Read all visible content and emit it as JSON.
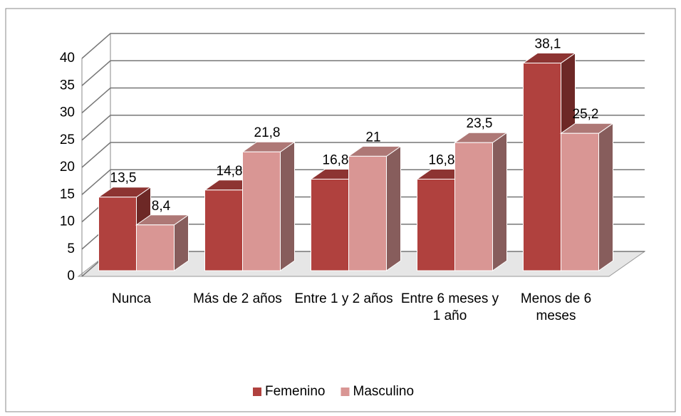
{
  "chart_data": {
    "type": "bar3d",
    "categories": [
      "Nunca",
      "Más de 2 años",
      "Entre 1 y 2 años",
      "Entre 6 meses y 1 año",
      "Menos de 6 meses"
    ],
    "series": [
      {
        "name": "Femenino",
        "color": "#b0413e",
        "values": [
          13.5,
          14.8,
          16.8,
          16.8,
          38.1
        ],
        "value_labels": [
          "13,5",
          "14,8",
          "16,8",
          "16,8",
          "38,1"
        ]
      },
      {
        "name": "Masculino",
        "color": "#d99694",
        "values": [
          8.4,
          21.8,
          21,
          23.5,
          25.2
        ],
        "value_labels": [
          "8,4",
          "21,8",
          "21",
          "23,5",
          "25,2"
        ]
      }
    ],
    "ylim": [
      0,
      40
    ],
    "yticks": [
      0,
      5,
      10,
      15,
      20,
      25,
      30,
      35,
      40
    ],
    "grid": true,
    "legend": "bottom"
  }
}
